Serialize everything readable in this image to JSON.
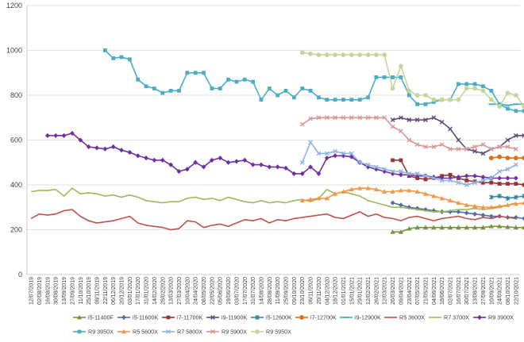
{
  "chart_data": {
    "type": "line",
    "title": "",
    "xlabel": "",
    "ylabel": "",
    "ylim": [
      0,
      1200
    ],
    "yticks": [
      0,
      200,
      400,
      600,
      800,
      1000,
      1200
    ],
    "grid": true,
    "legend_position": "bottom",
    "x_tick_labels": [
      "12/07/2019",
      "02/08/2019",
      "16/08/2019",
      "30/08/2019",
      "13/09/2019",
      "27/09/2019",
      "11/10/2019",
      "25/10/2019",
      "08/11/2019",
      "22/11/2019",
      "06/12/2019",
      "20/12/2019",
      "03/01/2020",
      "17/01/2020",
      "31/01/2020",
      "14/02/2020",
      "28/02/2020",
      "13/03/2020",
      "27/03/2020",
      "10/04/2020",
      "24/04/2020",
      "08/05/2020",
      "22/05/2020",
      "05/06/2020",
      "19/06/2020",
      "03/07/2020",
      "17/07/2020",
      "31/07/2020",
      "14/08/2020",
      "28/08/2020",
      "11/09/2020",
      "25/09/2020",
      "09/10/2020",
      "23/10/2020",
      "06/11/2020",
      "20/11/2020",
      "04/12/2020",
      "18/12/2020",
      "01/01/2021",
      "15/01/2021",
      "29/01/2021",
      "12/02/2021",
      "26/02/2021",
      "12/03/2021",
      "26/03/2021",
      "09/04/2021",
      "23/04/2021",
      "07/05/2021",
      "21/05/2021",
      "04/06/2021",
      "18/06/2021",
      "02/07/2021",
      "16/07/2021",
      "30/07/2021",
      "13/08/2021",
      "27/08/2021",
      "10/09/2021",
      "24/09/2021",
      "08/10/2021",
      "22/10/2021"
    ],
    "series": [
      {
        "name": "i5-11400F",
        "color": "#77933c",
        "marker": "triangle",
        "start_index": 44,
        "values": [
          190,
          190,
          205,
          210,
          210,
          210,
          210,
          210,
          210,
          210,
          210,
          210,
          215,
          215,
          212,
          210,
          210,
          210,
          210,
          210,
          210,
          215,
          220,
          220,
          222,
          225,
          210
        ]
      },
      {
        "name": "i5-11600K",
        "color": "#4f6ea8",
        "marker": "diamond",
        "start_index": 44,
        "values": [
          320,
          310,
          300,
          295,
          290,
          285,
          280,
          280,
          280,
          275,
          270,
          265,
          260,
          260,
          255,
          255,
          250,
          255,
          260,
          265,
          270,
          275,
          280,
          275,
          270,
          275,
          270
        ]
      },
      {
        "name": "i7-11700K",
        "color": "#953735",
        "marker": "square",
        "start_index": 44,
        "values": [
          510,
          510,
          440,
          430,
          425,
          430,
          440,
          445,
          430,
          420,
          415,
          410,
          410,
          405,
          405,
          405,
          400,
          400,
          395,
          395,
          390,
          390,
          390,
          390,
          390,
          390,
          390
        ]
      },
      {
        "name": "i9-11900K",
        "color": "#604a7b",
        "marker": "cross",
        "start_index": 44,
        "values": [
          690,
          700,
          690,
          690,
          690,
          700,
          680,
          650,
          600,
          560,
          550,
          540,
          560,
          570,
          600,
          620,
          620,
          620,
          600,
          560,
          570,
          580,
          560,
          545,
          545,
          550,
          550
        ]
      },
      {
        "name": "i5-12600K",
        "color": "#31859c",
        "marker": "star",
        "start_index": 56,
        "values": [
          345,
          350,
          340,
          345,
          350,
          355,
          350,
          350,
          350,
          345,
          345,
          350,
          345,
          340,
          350,
          345
        ]
      },
      {
        "name": "i7-12700K",
        "color": "#e46c0a",
        "marker": "circle",
        "start_index": 56,
        "values": [
          520,
          525,
          520,
          520,
          520,
          525,
          520,
          515,
          520,
          525,
          520,
          520,
          520,
          520,
          520,
          515
        ]
      },
      {
        "name": "i9-12900K",
        "color": "#4bacc6",
        "marker": "dash",
        "start_index": 56,
        "values": [
          760,
          760,
          755,
          760,
          760,
          760,
          765,
          760,
          760,
          760,
          760,
          760,
          760,
          760,
          760,
          760
        ]
      },
      {
        "name": "R5 3600X",
        "color": "#c0504d",
        "marker": "none",
        "start_index": 0,
        "values": [
          250,
          270,
          265,
          270,
          285,
          290,
          260,
          240,
          230,
          235,
          240,
          250,
          260,
          230,
          220,
          215,
          210,
          200,
          205,
          240,
          235,
          210,
          220,
          225,
          215,
          230,
          245,
          240,
          250,
          230,
          245,
          240,
          250,
          255,
          260,
          265,
          270,
          255,
          250,
          265,
          280,
          260,
          270,
          255,
          250,
          240,
          255,
          260,
          250,
          240,
          250,
          255,
          260,
          250,
          245,
          255,
          250,
          260,
          255,
          250
        ]
      },
      {
        "name": "R7 3700X",
        "color": "#9bbb59",
        "marker": "none",
        "start_index": 0,
        "values": [
          370,
          375,
          375,
          380,
          350,
          385,
          360,
          365,
          360,
          350,
          355,
          345,
          355,
          345,
          330,
          325,
          320,
          325,
          325,
          340,
          345,
          335,
          340,
          330,
          345,
          335,
          325,
          320,
          330,
          320,
          325,
          320,
          330,
          335,
          325,
          340,
          380,
          360,
          370,
          360,
          350,
          330,
          320,
          310,
          300,
          300,
          295,
          290,
          285,
          280,
          280,
          285,
          290,
          290,
          295,
          290,
          295,
          300,
          310,
          320
        ]
      },
      {
        "name": "R9 3900X",
        "color": "#7030a0",
        "marker": "diamond",
        "start_index": 2,
        "values": [
          620,
          620,
          620,
          630,
          600,
          570,
          565,
          560,
          570,
          555,
          545,
          530,
          520,
          510,
          510,
          490,
          460,
          470,
          500,
          480,
          510,
          520,
          500,
          505,
          510,
          490,
          490,
          480,
          480,
          475,
          450,
          450,
          480,
          450,
          520,
          530,
          530,
          525,
          500,
          480,
          470,
          460,
          450,
          445,
          445,
          440,
          440,
          435,
          430,
          430,
          435,
          440,
          440,
          435,
          430,
          430,
          430,
          430
        ]
      },
      {
        "name": "R9 3950X",
        "color": "#4bacc6",
        "marker": "square",
        "start_index": 9,
        "values": [
          1000,
          965,
          970,
          960,
          870,
          840,
          830,
          810,
          820,
          820,
          900,
          900,
          900,
          830,
          830,
          870,
          860,
          870,
          860,
          780,
          830,
          800,
          820,
          790,
          830,
          820,
          790,
          780,
          780,
          780,
          780,
          780,
          790,
          880,
          880,
          880,
          880,
          800,
          760,
          760,
          770,
          780,
          780,
          850,
          850,
          850,
          840,
          820,
          760,
          740,
          730,
          730,
          730,
          730,
          730,
          730,
          730,
          730,
          730,
          735,
          730
        ]
      },
      {
        "name": "R5 5600X",
        "color": "#f79646",
        "marker": "triangle",
        "start_index": 33,
        "values": [
          330,
          335,
          340,
          340,
          360,
          370,
          380,
          385,
          385,
          380,
          370,
          370,
          375,
          375,
          370,
          360,
          350,
          340,
          330,
          320,
          310,
          305,
          300,
          300,
          305,
          310,
          315,
          320,
          330
        ]
      },
      {
        "name": "R7 5800X",
        "color": "#8eb4e3",
        "marker": "cross",
        "start_index": 33,
        "values": [
          500,
          590,
          540,
          540,
          550,
          540,
          540,
          500,
          490,
          480,
          470,
          460,
          460,
          450,
          450,
          440,
          430,
          420,
          420,
          410,
          400,
          410,
          420,
          430,
          460,
          470,
          490
        ]
      },
      {
        "name": "R9 5900X",
        "color": "#d99694",
        "marker": "cross",
        "start_index": 33,
        "values": [
          670,
          695,
          700,
          700,
          700,
          700,
          700,
          700,
          700,
          700,
          700,
          660,
          640,
          600,
          580,
          570,
          570,
          580,
          560,
          560,
          560,
          570,
          580,
          560,
          570,
          570,
          560
        ]
      },
      {
        "name": "R9 5950X",
        "color": "#c4d79b",
        "marker": "circle",
        "start_index": 33,
        "values": [
          990,
          985,
          980,
          980,
          980,
          980,
          980,
          980,
          980,
          980,
          980,
          830,
          930,
          820,
          800,
          800,
          780,
          780,
          780,
          780,
          830,
          830,
          820,
          780,
          750,
          810,
          800,
          750
        ]
      }
    ]
  }
}
